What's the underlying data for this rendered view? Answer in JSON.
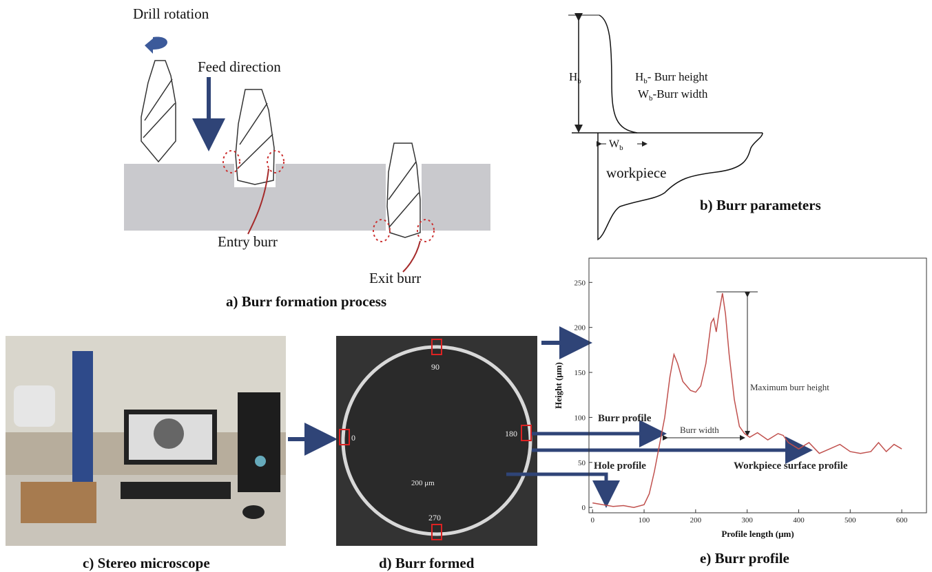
{
  "panel_a": {
    "drill_rotation": "Drill rotation",
    "feed_direction": "Feed direction",
    "entry_burr": "Entry burr",
    "exit_burr": "Exit burr",
    "caption": "a) Burr formation process"
  },
  "panel_b": {
    "hb_dim": {
      "main": "H",
      "sub": "b"
    },
    "legend_h": {
      "main": "H",
      "sub": "b",
      "rest": "- Burr height"
    },
    "legend_w": {
      "main": "W",
      "sub": "b",
      "rest": "-Burr width"
    },
    "wb_dim": {
      "main": "W",
      "sub": "b"
    },
    "workpiece": "workpiece",
    "caption": "b) Burr parameters"
  },
  "panel_c": {
    "caption": "c) Stereo microscope"
  },
  "panel_d": {
    "angles": [
      "90",
      "0",
      "180",
      "270"
    ],
    "scale": "200 μm",
    "caption": "d) Burr formed"
  },
  "panel_e": {
    "caption": "e) Burr profile",
    "chart": {
      "type": "line",
      "x_label": "Profile length (μm)",
      "y_label": "Height (μm)",
      "x": [
        0,
        20,
        40,
        60,
        80,
        100,
        110,
        120,
        130,
        140,
        150,
        158,
        165,
        175,
        190,
        200,
        210,
        220,
        230,
        235,
        240,
        245,
        252,
        258,
        265,
        275,
        285,
        295,
        305,
        320,
        340,
        360,
        370,
        380,
        400,
        420,
        440,
        460,
        480,
        500,
        520,
        540,
        555,
        570,
        585,
        600
      ],
      "values": [
        5,
        3,
        1,
        2,
        0,
        3,
        15,
        40,
        70,
        100,
        145,
        170,
        160,
        140,
        130,
        128,
        135,
        160,
        205,
        210,
        195,
        215,
        238,
        215,
        170,
        120,
        90,
        82,
        78,
        83,
        75,
        82,
        80,
        72,
        65,
        72,
        60,
        65,
        70,
        62,
        60,
        62,
        72,
        62,
        70,
        65
      ],
      "color": "#c0504d",
      "xlim": [
        -7,
        648
      ],
      "ylim": [
        -6,
        277
      ],
      "xticks": [
        0,
        100,
        200,
        300,
        400,
        500,
        600
      ],
      "yticks": [
        0,
        50,
        100,
        150,
        200,
        250
      ],
      "annotations": {
        "max_height": "Maximum burr height",
        "burr_width": "Burr width",
        "burr_profile": "Burr profile",
        "hole_profile": "Hole profile",
        "surface_profile": "Workpiece surface profile"
      }
    }
  }
}
